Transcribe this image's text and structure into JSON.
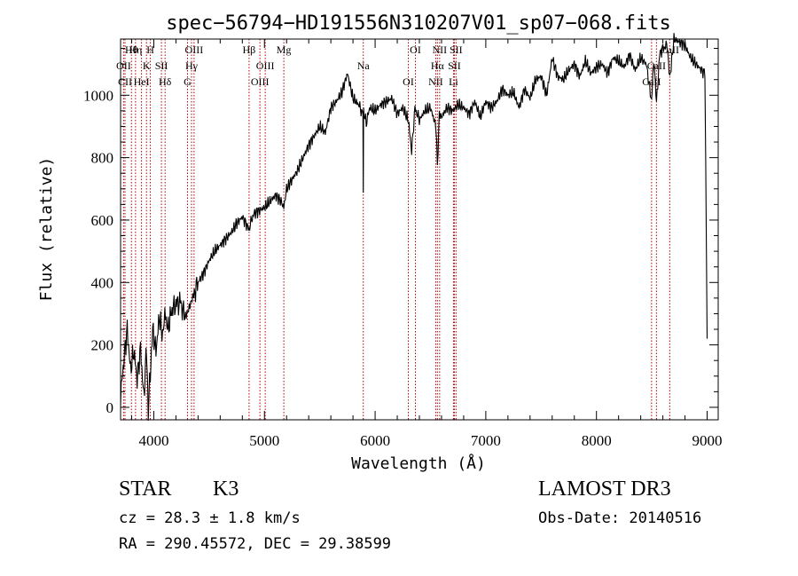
{
  "chart_data": {
    "type": "line",
    "title": "spec−56794−HD191556N310207V01_sp07−068.fits",
    "xlabel": "Wavelength (Å)",
    "ylabel": "Flux (relative)",
    "xlim": [
      3700,
      9100
    ],
    "ylim": [
      -40,
      1180
    ],
    "x_ticks": [
      4000,
      5000,
      6000,
      7000,
      8000,
      9000
    ],
    "y_ticks": [
      0,
      200,
      400,
      600,
      800,
      1000
    ],
    "grid": false,
    "legend": "none",
    "series": [
      {
        "x": [
          3700,
          3730,
          3760,
          3790,
          3820,
          3850,
          3880,
          3910,
          3935,
          3950,
          3968,
          3990,
          4020,
          4050,
          4080,
          4100,
          4130,
          4160,
          4200,
          4240,
          4280,
          4300,
          4320,
          4340,
          4360,
          4400,
          4450,
          4500,
          4550,
          4600,
          4650,
          4700,
          4750,
          4800,
          4861,
          4900,
          4950,
          5000,
          5050,
          5100,
          5150,
          5175,
          5200,
          5250,
          5300,
          5350,
          5400,
          5450,
          5500,
          5550,
          5600,
          5650,
          5700,
          5750,
          5800,
          5850,
          5890,
          5893,
          5896,
          5920,
          5950,
          6000,
          6050,
          6100,
          6150,
          6200,
          6250,
          6300,
          6330,
          6360,
          6400,
          6450,
          6500,
          6550,
          6563,
          6580,
          6600,
          6650,
          6700,
          6750,
          6800,
          6850,
          6900,
          6950,
          7000,
          7050,
          7100,
          7150,
          7200,
          7250,
          7300,
          7350,
          7400,
          7450,
          7500,
          7550,
          7600,
          7650,
          7700,
          7750,
          7800,
          7850,
          7900,
          7950,
          8000,
          8050,
          8100,
          8150,
          8200,
          8250,
          8300,
          8350,
          8400,
          8450,
          8498,
          8520,
          8542,
          8570,
          8600,
          8640,
          8662,
          8700,
          8750,
          8800,
          8850,
          8900,
          8950,
          8980,
          9000
        ],
        "values": [
          40,
          150,
          250,
          120,
          180,
          90,
          190,
          30,
          200,
          -10,
          110,
          250,
          180,
          290,
          230,
          300,
          250,
          310,
          330,
          340,
          290,
          300,
          320,
          340,
          360,
          400,
          430,
          470,
          500,
          520,
          540,
          560,
          590,
          610,
          570,
          620,
          630,
          640,
          660,
          680,
          660,
          640,
          700,
          730,
          760,
          800,
          840,
          870,
          900,
          880,
          960,
          980,
          1010,
          1070,
          990,
          970,
          940,
          690,
          950,
          910,
          960,
          950,
          970,
          980,
          990,
          940,
          960,
          920,
          820,
          960,
          920,
          950,
          960,
          900,
          780,
          940,
          930,
          960,
          950,
          970,
          960,
          940,
          980,
          930,
          980,
          960,
          980,
          1020,
          1000,
          1010,
          960,
          1020,
          990,
          1050,
          1060,
          1000,
          1120,
          1060,
          1050,
          1080,
          1100,
          1060,
          1110,
          1070,
          1090,
          1100,
          1070,
          1120,
          1110,
          1090,
          1130,
          1080,
          1120,
          1100,
          980,
          1120,
          970,
          1130,
          1150,
          1160,
          1050,
          1180,
          1170,
          1160,
          1120,
          1100,
          1080,
          1070,
          220
        ]
      }
    ],
    "lines": [
      {
        "label": "Hθ",
        "x": 3798
      },
      {
        "label": "OII",
        "x": 3727
      },
      {
        "label": "CII",
        "x": 3740
      },
      {
        "label": "Hη",
        "x": 3835
      },
      {
        "label": "K",
        "x": 3934
      },
      {
        "label": "HeI",
        "x": 3889
      },
      {
        "label": "H",
        "x": 3969
      },
      {
        "label": "SII",
        "x": 4069
      },
      {
        "label": "Hδ",
        "x": 4102
      },
      {
        "label": "OIII",
        "x": 4364
      },
      {
        "label": "Hγ",
        "x": 4341
      },
      {
        "label": "G",
        "x": 4305
      },
      {
        "label": "Hβ",
        "x": 4861
      },
      {
        "label": "OIII",
        "x": 5007
      },
      {
        "label": "OIII",
        "x": 4959
      },
      {
        "label": "Mg",
        "x": 5175
      },
      {
        "label": "Na",
        "x": 5893
      },
      {
        "label": "OI",
        "x": 6300
      },
      {
        "label": "OI",
        "x": 6364
      },
      {
        "label": "Hα",
        "x": 6563
      },
      {
        "label": "NII",
        "x": 6548
      },
      {
        "label": "NII",
        "x": 6583
      },
      {
        "label": "SII",
        "x": 6716
      },
      {
        "label": "Li",
        "x": 6708
      },
      {
        "label": "SII",
        "x": 6731
      },
      {
        "label": "CaII",
        "x": 8542
      },
      {
        "label": "CaII",
        "x": 8498
      },
      {
        "label": "CaII",
        "x": 8662
      }
    ]
  },
  "info": {
    "class_label": "STAR",
    "subclass": "K3",
    "survey": "LAMOST DR3",
    "cz": "cz = 28.3 ± 1.8 km/s",
    "obs_date": "Obs-Date: 20140516",
    "coords": "RA = 290.45572, DEC =  29.38599"
  }
}
